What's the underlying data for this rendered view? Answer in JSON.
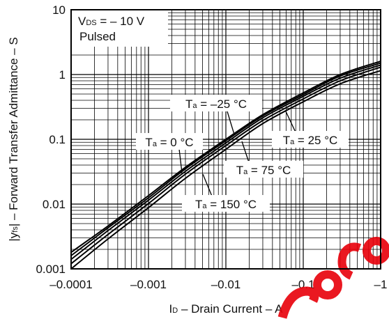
{
  "chart_data": {
    "type": "line",
    "x_scale": "log",
    "y_scale": "log",
    "xlim": [
      -0.0001,
      -1
    ],
    "ylim": [
      0.001,
      10
    ],
    "grid": true,
    "x_major_ticks": [
      {
        "value": -0.0001,
        "label": "–0.0001"
      },
      {
        "value": -0.001,
        "label": "–0.001"
      },
      {
        "value": -0.01,
        "label": "–0.01"
      },
      {
        "value": -0.1,
        "label": "–0.1"
      },
      {
        "value": -1,
        "label": "–1"
      }
    ],
    "y_major_ticks": [
      {
        "value": 0.001,
        "label": "0.001"
      },
      {
        "value": 0.01,
        "label": "0.01"
      },
      {
        "value": 0.1,
        "label": "0.1"
      },
      {
        "value": 1,
        "label": "1"
      },
      {
        "value": 10,
        "label": "10"
      }
    ],
    "xlabel": {
      "symbol": "I",
      "sub": "D",
      "text": " – Drain Current – A"
    },
    "ylabel": {
      "pre": "|y",
      "sub": "fs",
      "text": "| – Forward Transfer Admittance – S"
    },
    "conditions": {
      "line1_symbol": "V",
      "line1_sub": "DS",
      "line1_text": " = – 10 V",
      "line2": "Pulsed"
    },
    "series": [
      {
        "name": "Ta = –25 °C",
        "label": {
          "symbol": "T",
          "sub": "a",
          "text": " = –25 °C"
        },
        "x": [
          -0.0001,
          -0.0003,
          -0.001,
          -0.003,
          -0.01,
          -0.03,
          -0.1,
          -0.3,
          -1
        ],
        "y": [
          0.0018,
          0.0046,
          0.0135,
          0.037,
          0.1,
          0.24,
          0.52,
          1.0,
          1.6
        ]
      },
      {
        "name": "Ta = 0 °C",
        "label": {
          "symbol": "T",
          "sub": "a",
          "text": " = 0 °C"
        },
        "x": [
          -0.0001,
          -0.0003,
          -0.001,
          -0.003,
          -0.01,
          -0.03,
          -0.1,
          -0.3,
          -1
        ],
        "y": [
          0.0016,
          0.0043,
          0.0125,
          0.035,
          0.095,
          0.23,
          0.49,
          0.95,
          1.5
        ]
      },
      {
        "name": "Ta = 25 °C",
        "label": {
          "symbol": "T",
          "sub": "a",
          "text": " = 25 °C"
        },
        "x": [
          -0.0001,
          -0.0003,
          -0.001,
          -0.003,
          -0.01,
          -0.03,
          -0.1,
          -0.3,
          -1
        ],
        "y": [
          0.0014,
          0.0039,
          0.0115,
          0.032,
          0.088,
          0.215,
          0.46,
          0.88,
          1.4
        ]
      },
      {
        "name": "Ta = 75 °C",
        "label": {
          "symbol": "T",
          "sub": "a",
          "text": " = 75 °C"
        },
        "x": [
          -0.0001,
          -0.0003,
          -0.001,
          -0.003,
          -0.01,
          -0.03,
          -0.1,
          -0.3,
          -1
        ],
        "y": [
          0.0012,
          0.0034,
          0.0102,
          0.029,
          0.08,
          0.195,
          0.42,
          0.8,
          1.3
        ]
      },
      {
        "name": "Ta = 150 °C",
        "label": {
          "symbol": "T",
          "sub": "a",
          "text": " = 150 °C"
        },
        "x": [
          -0.0001,
          -0.0003,
          -0.001,
          -0.003,
          -0.01,
          -0.03,
          -0.1,
          -0.3,
          -1
        ],
        "y": [
          0.001,
          0.0029,
          0.0088,
          0.025,
          0.07,
          0.175,
          0.38,
          0.72,
          1.15
        ]
      }
    ],
    "watermark_color": "#e8000a"
  }
}
